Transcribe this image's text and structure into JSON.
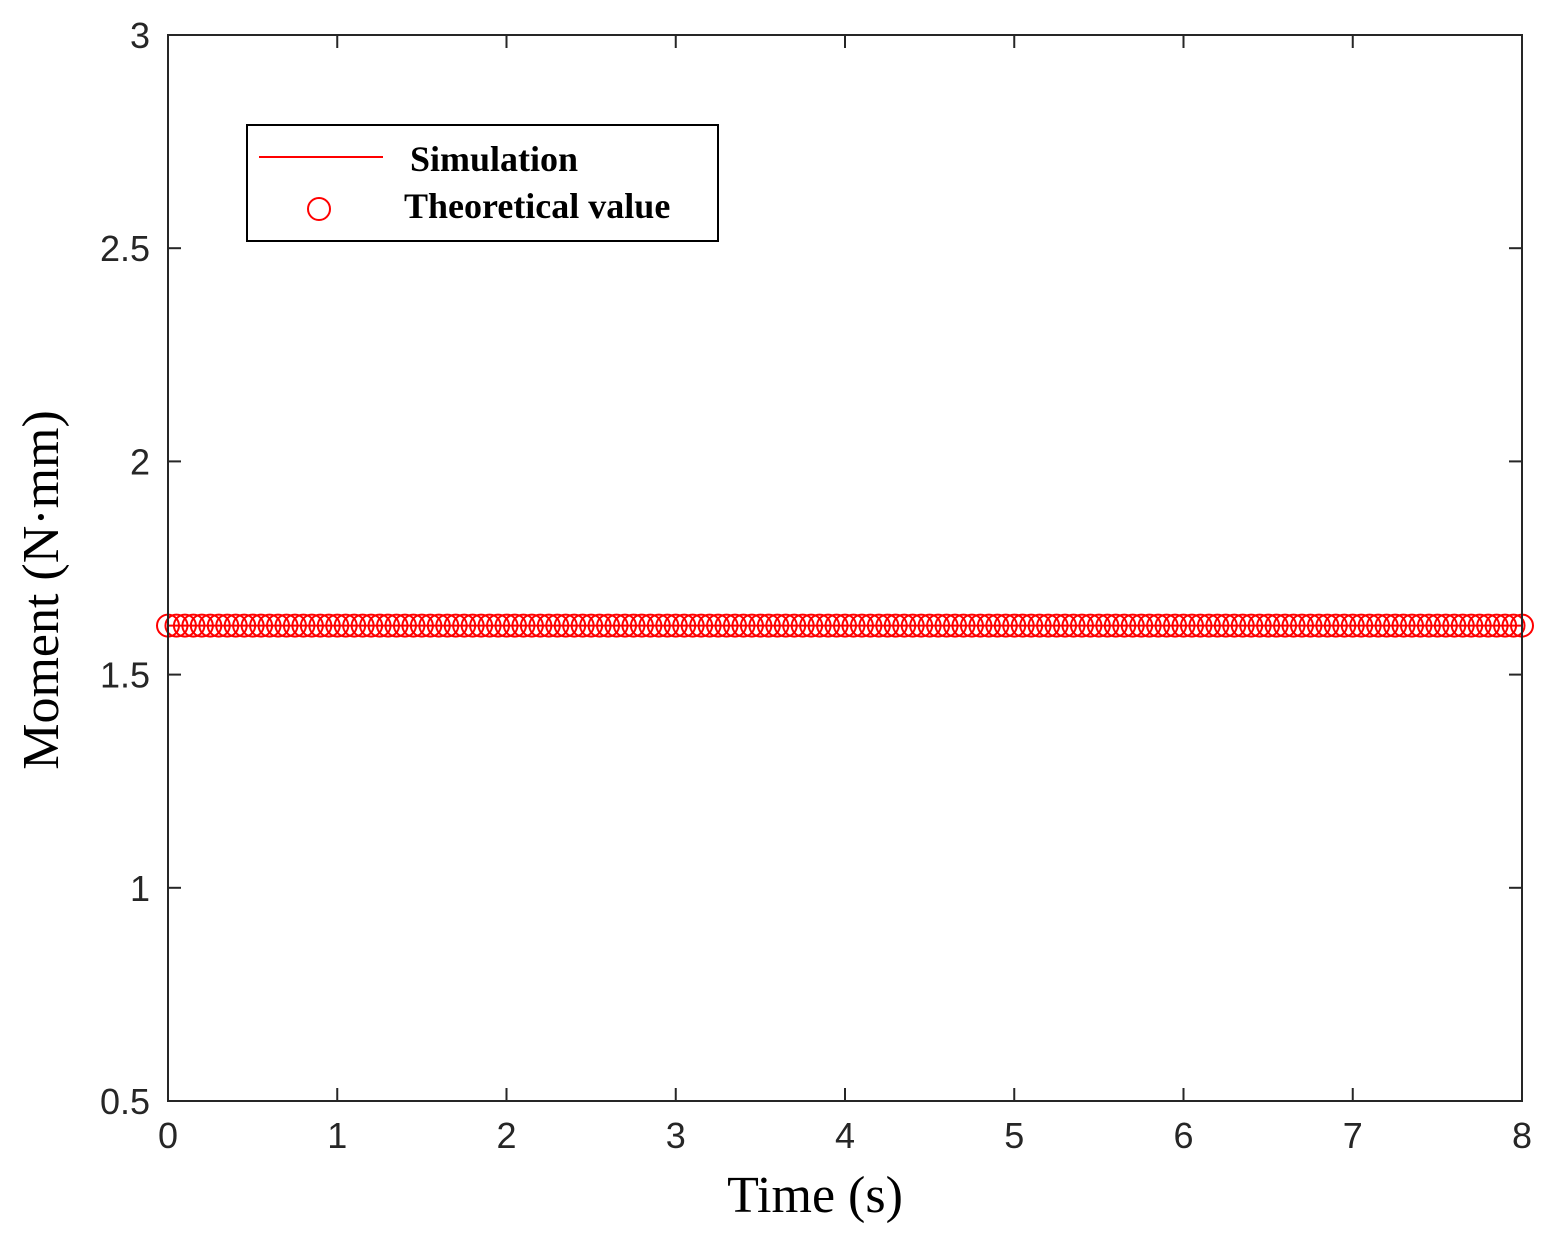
{
  "chart_data": {
    "type": "line",
    "xlabel": "Time (s)",
    "ylabel": "Moment (N·mm)",
    "xlim": [
      0,
      8
    ],
    "ylim": [
      0.5,
      3
    ],
    "xticks": [
      "0",
      "1",
      "2",
      "3",
      "4",
      "5",
      "6",
      "7",
      "8"
    ],
    "yticks": [
      "0.5",
      "1",
      "1.5",
      "2",
      "2.5",
      "3"
    ],
    "grid": false,
    "legend_position": "top-left",
    "series": [
      {
        "name": "Simulation",
        "style": "line",
        "color": "#ff0000",
        "x": [
          0,
          8
        ],
        "y": [
          1.615,
          1.615
        ]
      },
      {
        "name": "Theoretical value",
        "style": "marker-circle",
        "color": "#ff0000",
        "x_start": 0,
        "x_end": 8,
        "x_step": 0.05,
        "y_const": 1.615
      }
    ]
  }
}
